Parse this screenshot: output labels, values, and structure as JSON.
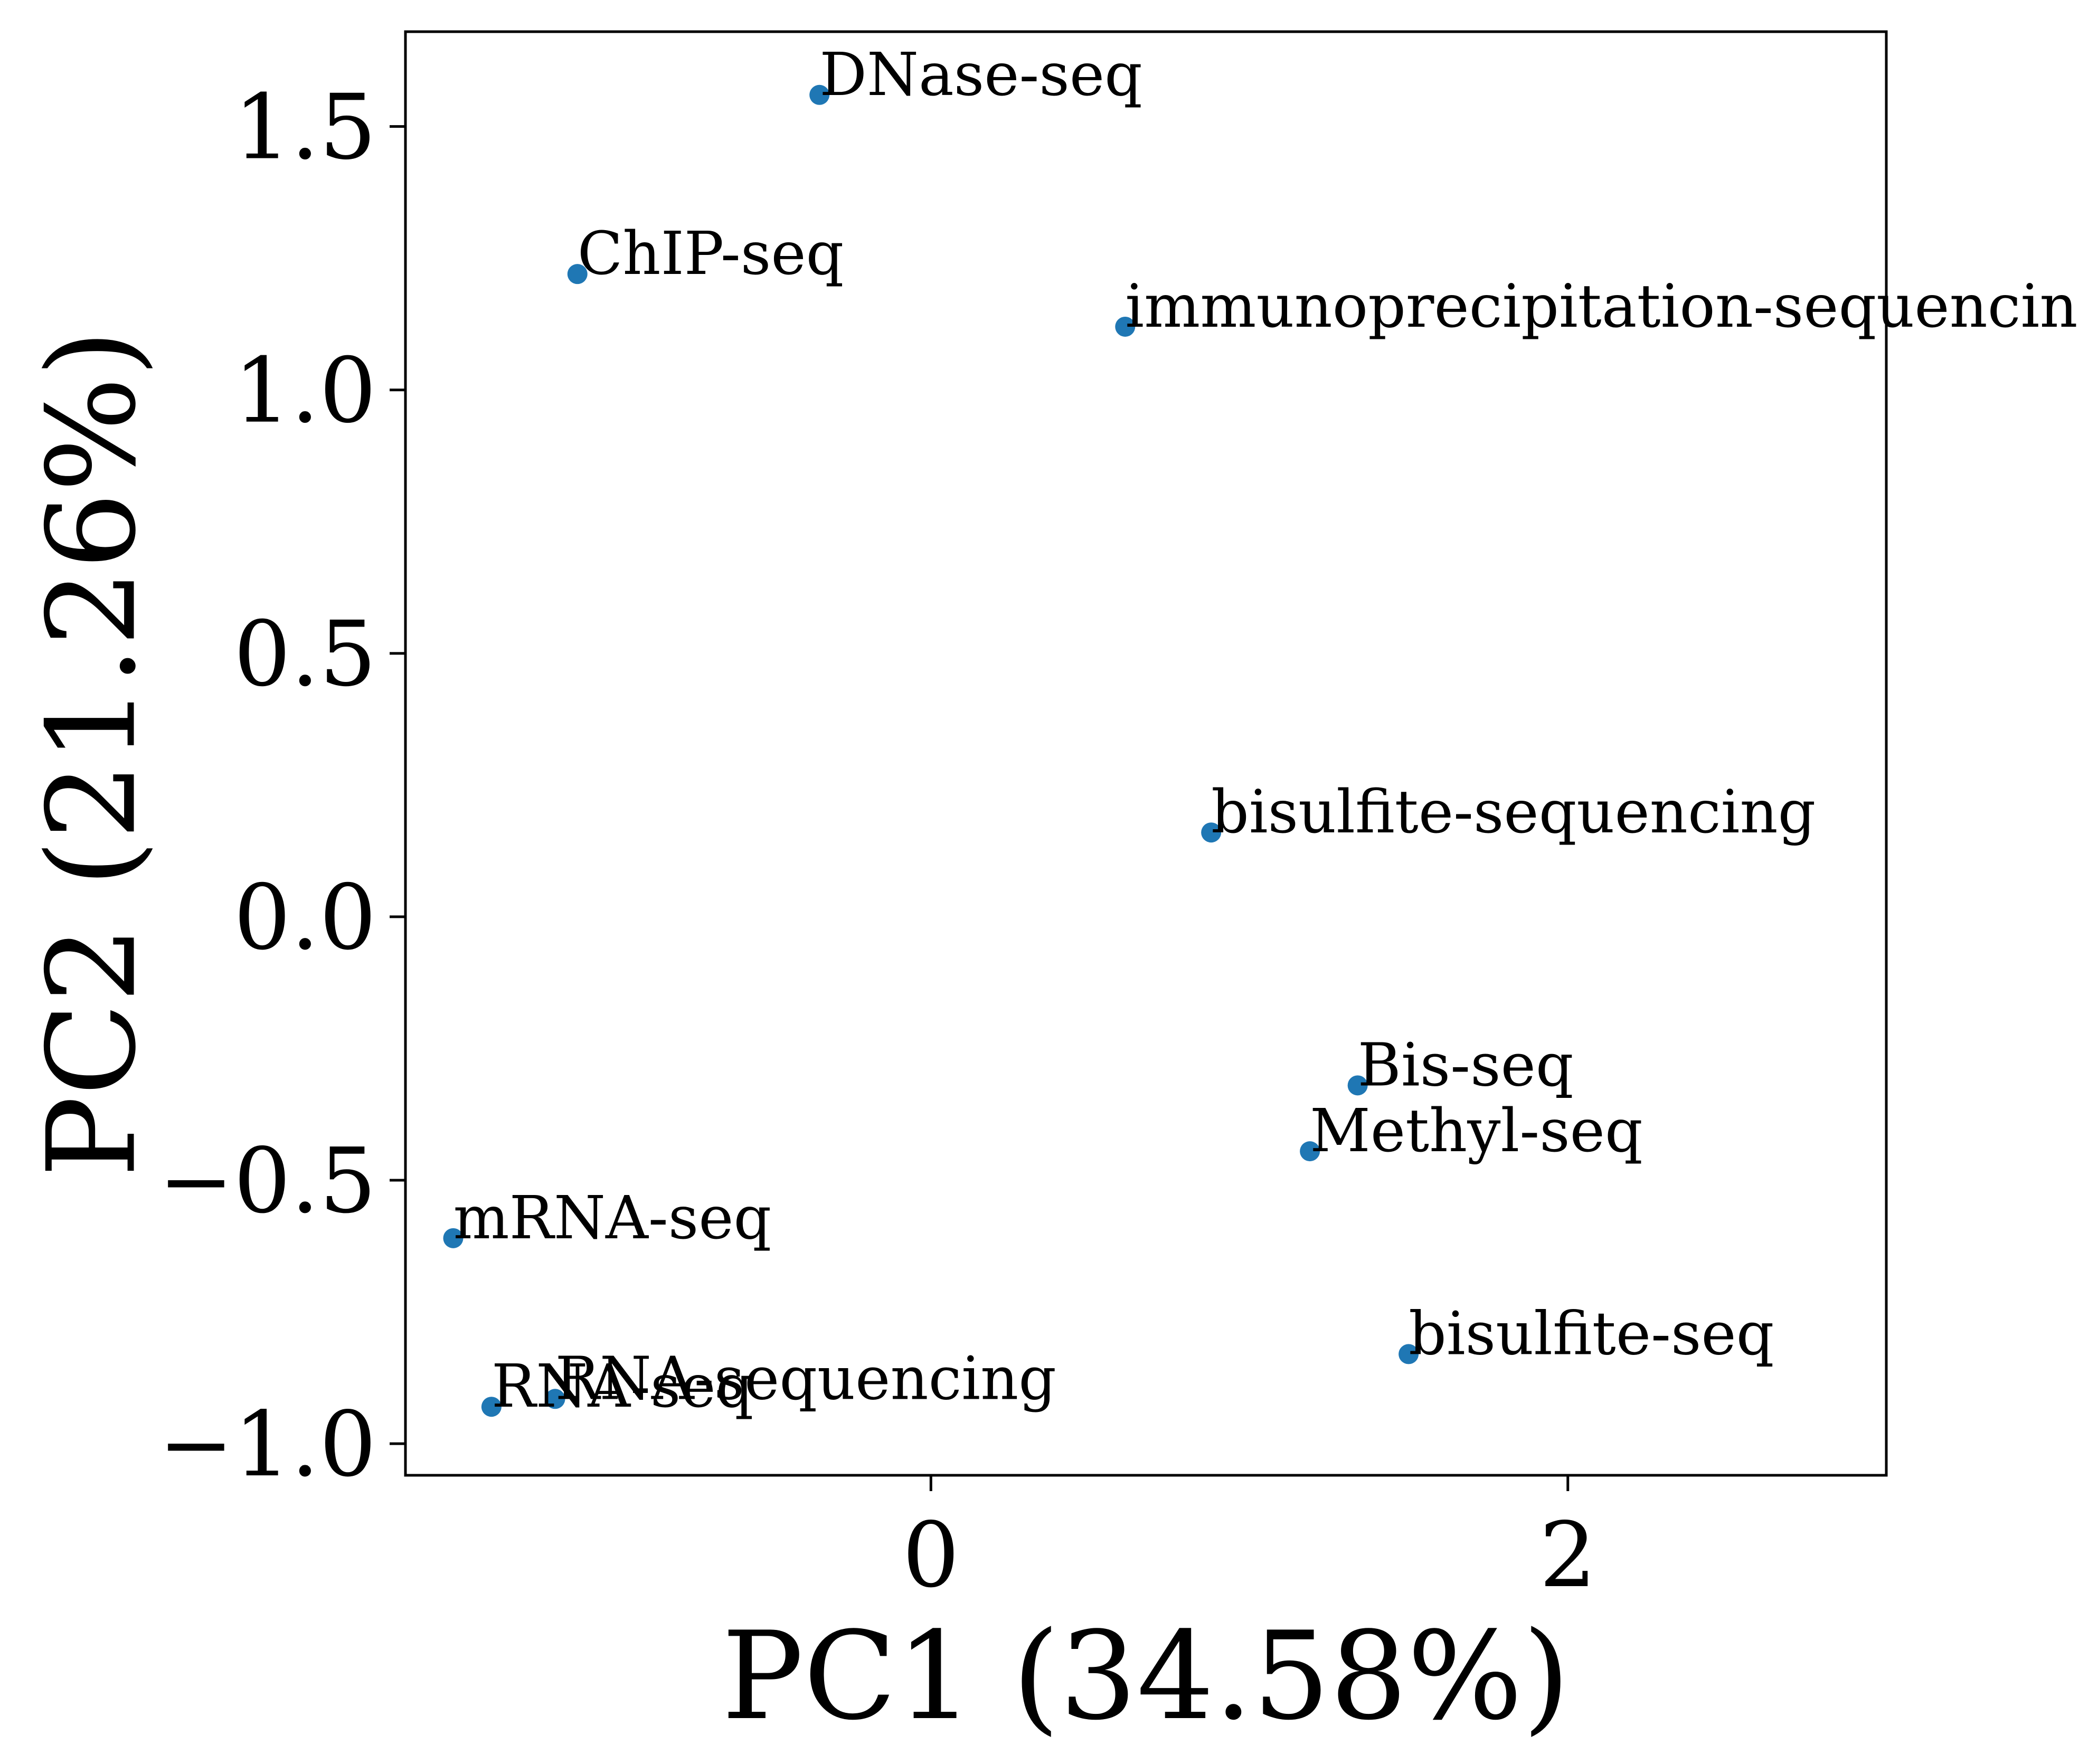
{
  "chart_data": {
    "type": "scatter",
    "xlabel": "PC1 (34.58%)",
    "ylabel": "PC2 (21.26%)",
    "xlim": [
      -1.65,
      3.0
    ],
    "ylim": [
      -1.06,
      1.68
    ],
    "xticks": [
      0,
      2
    ],
    "xtick_labels": [
      "0",
      "2"
    ],
    "yticks": [
      -1.0,
      -0.5,
      0.0,
      0.5,
      1.0,
      1.5
    ],
    "ytick_labels": [
      "−1.0",
      "−0.5",
      "0.0",
      "0.5",
      "1.0",
      "1.5"
    ],
    "grid": false,
    "marker_color": "#1f77b4",
    "points": [
      {
        "label": "DNase-seq",
        "x": -0.35,
        "y": 1.56
      },
      {
        "label": "ChIP-seq",
        "x": -1.11,
        "y": 1.22
      },
      {
        "label": "immunoprecipitation-sequencing",
        "x": 0.61,
        "y": 1.12
      },
      {
        "label": "bisulfite-sequencing",
        "x": 0.88,
        "y": 0.16
      },
      {
        "label": "Bis-seq",
        "x": 1.34,
        "y": -0.32
      },
      {
        "label": "Methyl-seq",
        "x": 1.19,
        "y": -0.445
      },
      {
        "label": "mRNA-seq",
        "x": -1.5,
        "y": -0.61
      },
      {
        "label": "bisulfite-seq",
        "x": 1.5,
        "y": -0.83
      },
      {
        "label": "RNA-seq",
        "x": -1.38,
        "y": -0.93
      },
      {
        "label": "RNA-sequencing",
        "x": -1.18,
        "y": -0.915
      }
    ]
  }
}
